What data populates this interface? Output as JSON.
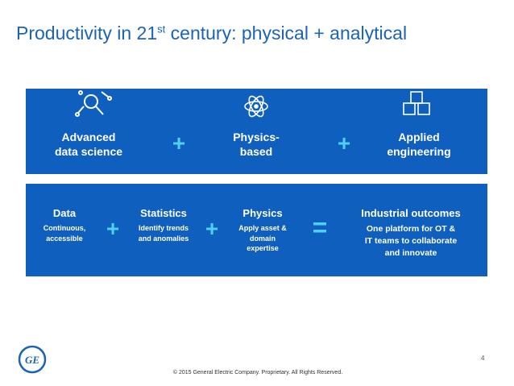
{
  "header": {
    "title_start": "Productivity in 21",
    "title_sup": "st",
    "title_end": " century: physical + analytical"
  },
  "top_band": {
    "items": [
      {
        "lines": [
          "Advanced",
          "data science"
        ]
      },
      {
        "lines": [
          "Physics-",
          "based"
        ]
      },
      {
        "lines": [
          "Applied",
          "engineering"
        ]
      }
    ],
    "operators": [
      "+",
      "+"
    ]
  },
  "bottom_band": {
    "items": [
      {
        "title": "Data",
        "lines": [
          "Continuous,",
          "accessible"
        ]
      },
      {
        "title": "Statistics",
        "lines": [
          "Identify trends",
          "and anomalies"
        ]
      },
      {
        "title": "Physics",
        "lines": [
          "Apply asset &",
          "domain",
          "expertise"
        ]
      },
      {
        "title": "Industrial outcomes",
        "lines": [
          "One platform for OT &",
          "IT teams to collaborate",
          "and innovate"
        ]
      }
    ],
    "operators": [
      "+",
      "+",
      "="
    ]
  },
  "footer": {
    "logo": "GE",
    "copyright": "© 2015 General Electric Company. Proprietary. All Rights Reserved.",
    "page_number": "4"
  }
}
